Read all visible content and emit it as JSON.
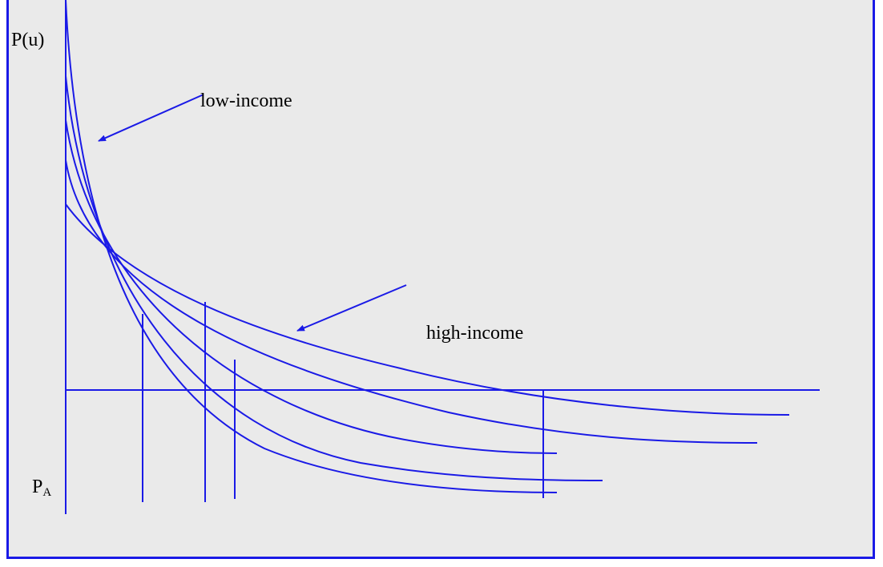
{
  "labels": {
    "y_axis": "P(u)",
    "low_income": "low-income",
    "high_income": "high-income",
    "pa_main": "P",
    "pa_sub": "A"
  },
  "colors": {
    "line": "#1a1ae6",
    "background": "#eaeaea",
    "text": "#000000"
  }
}
